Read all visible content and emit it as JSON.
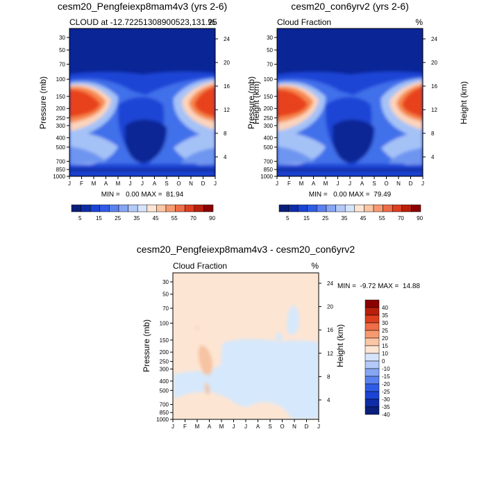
{
  "chart_data": [
    {
      "type": "heatmap",
      "title": "cesm20_Pengfeiexp8mam4v3 (yrs 2-6)",
      "subtitle_left": "CLOUD at -12.72251308900523,131.25",
      "subtitle_right": "%",
      "xlabel": "",
      "ylabel": "Pressure (mb)",
      "ylabel_right": "Height (km)",
      "x_ticks": [
        "J",
        "F",
        "M",
        "A",
        "M",
        "J",
        "J",
        "A",
        "S",
        "O",
        "N",
        "D",
        "J"
      ],
      "y_ticks": [
        "30",
        "50",
        "70",
        "100",
        "150",
        "200",
        "250",
        "300",
        "400",
        "500",
        "700",
        "850",
        "1000"
      ],
      "y_ticks_right": [
        "24",
        "20",
        "16",
        "12",
        "8",
        "4"
      ],
      "stats": "MIN =   0.00 MAX =  81.94",
      "colorbar_labels": [
        "5",
        "15",
        "25",
        "35",
        "45",
        "55",
        "70",
        "90"
      ],
      "levels": [
        0,
        5,
        10,
        15,
        20,
        25,
        30,
        35,
        40,
        45,
        50,
        55,
        60,
        70,
        80,
        90
      ],
      "features": [
        {
          "name": "upper-cloud-left",
          "month": 1.5,
          "pressure_mb": 150,
          "value": 70
        },
        {
          "name": "upper-cloud-right",
          "month": 12.5,
          "pressure_mb": 150,
          "value": 70
        },
        {
          "name": "lower-cloud-left",
          "month": 1,
          "pressure_mb": 500,
          "value": 25
        },
        {
          "name": "lower-cloud-right",
          "month": 12,
          "pressure_mb": 500,
          "value": 25
        },
        {
          "name": "dry-season-minimum",
          "month": 7.5,
          "pressure_mb": 500,
          "value": 0
        },
        {
          "name": "stratosphere",
          "month": 6,
          "pressure_mb": 40,
          "value": 0
        }
      ]
    },
    {
      "type": "heatmap",
      "title": "cesm20_con6yrv2 (yrs 2-6)",
      "subtitle_left": "Cloud Fraction",
      "subtitle_right": "%",
      "xlabel": "",
      "ylabel": "Pressure (mb)",
      "ylabel_right": "Height (km)",
      "x_ticks": [
        "J",
        "F",
        "M",
        "A",
        "M",
        "J",
        "J",
        "A",
        "S",
        "O",
        "N",
        "D",
        "J"
      ],
      "y_ticks": [
        "30",
        "50",
        "70",
        "100",
        "150",
        "200",
        "250",
        "300",
        "400",
        "500",
        "700",
        "850",
        "1000"
      ],
      "y_ticks_right": [
        "24",
        "20",
        "16",
        "12",
        "8",
        "4"
      ],
      "stats": "MIN =   0.00 MAX =  79.49",
      "colorbar_labels": [
        "5",
        "15",
        "25",
        "35",
        "45",
        "55",
        "70",
        "90"
      ],
      "levels": [
        0,
        5,
        10,
        15,
        20,
        25,
        30,
        35,
        40,
        45,
        50,
        55,
        60,
        70,
        80,
        90
      ],
      "features": [
        {
          "name": "upper-cloud-left",
          "month": 1.5,
          "pressure_mb": 150,
          "value": 68
        },
        {
          "name": "upper-cloud-right",
          "month": 12.5,
          "pressure_mb": 150,
          "value": 68
        },
        {
          "name": "lower-cloud-left",
          "month": 1,
          "pressure_mb": 500,
          "value": 25
        },
        {
          "name": "lower-cloud-right",
          "month": 12,
          "pressure_mb": 500,
          "value": 25
        },
        {
          "name": "dry-season-minimum",
          "month": 7.5,
          "pressure_mb": 500,
          "value": 0
        },
        {
          "name": "stratosphere",
          "month": 6,
          "pressure_mb": 40,
          "value": 0
        }
      ]
    },
    {
      "type": "heatmap",
      "title": "cesm20_Pengfeiexp8mam4v3 - cesm20_con6yrv2",
      "subtitle_left": "Cloud Fraction",
      "subtitle_right": "%",
      "xlabel": "",
      "ylabel": "Pressure (mb)",
      "ylabel_right": "Height (km)",
      "x_ticks": [
        "J",
        "F",
        "M",
        "A",
        "M",
        "J",
        "J",
        "A",
        "S",
        "O",
        "N",
        "D",
        "J"
      ],
      "y_ticks": [
        "30",
        "50",
        "70",
        "100",
        "150",
        "200",
        "250",
        "300",
        "400",
        "500",
        "700",
        "850",
        "1000"
      ],
      "y_ticks_right": [
        "24",
        "20",
        "16",
        "12",
        "8",
        "4"
      ],
      "stats": "MIN =  -9.72 MAX =  14.88",
      "colorbar_labels": [
        "40",
        "35",
        "30",
        "25",
        "20",
        "15",
        "10",
        "0",
        "-10",
        "-15",
        "-20",
        "-25",
        "-30",
        "-35",
        "-40"
      ],
      "levels": [
        -40,
        -35,
        -30,
        -25,
        -20,
        -15,
        -10,
        0,
        10,
        15,
        20,
        25,
        30,
        35,
        40
      ],
      "features": [
        {
          "name": "positive-background",
          "sign": "positive",
          "value": 5
        },
        {
          "name": "negative-region-mid-troposphere",
          "sign": "negative",
          "value": -5
        },
        {
          "name": "positive-patch-march",
          "month": 3.3,
          "pressure_mb": 200,
          "value": 12
        }
      ]
    }
  ],
  "colors": {
    "dark_blue": "#0a2596",
    "blue": "#1b44d6",
    "light_blue": "#a5c2f7",
    "pale_blue": "#d6e8fb",
    "peach": "#fde5d3",
    "orange_red": "#e8431f",
    "dark_red": "#8a0000"
  }
}
